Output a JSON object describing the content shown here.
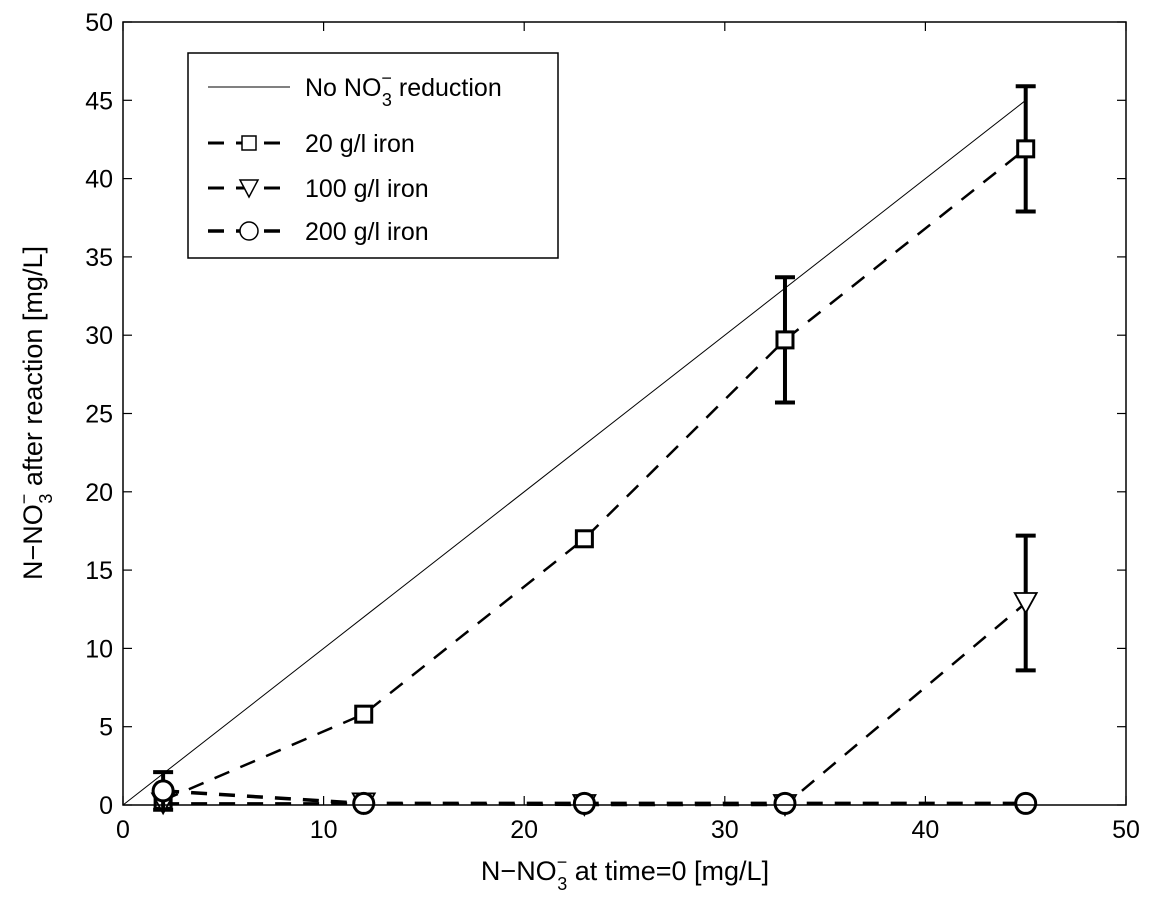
{
  "chart_data": {
    "type": "line",
    "xlabel": {
      "main": "N−NO",
      "sub": "3",
      "sup": "−",
      "rest": " at time=0 [mg/L]"
    },
    "ylabel": {
      "main": "N−NO",
      "sub": "3",
      "sup": "−",
      "rest": " after reaction [mg/L]"
    },
    "xlim": [
      0,
      50
    ],
    "ylim": [
      0,
      50
    ],
    "xticks": [
      "0",
      "10",
      "20",
      "30",
      "40",
      "50"
    ],
    "yticks": [
      "0",
      "5",
      "10",
      "15",
      "20",
      "25",
      "30",
      "35",
      "40",
      "45",
      "50"
    ],
    "grid": false,
    "legend_position": "top-left",
    "reference_line": {
      "label_main": "No NO",
      "label_sub": "3",
      "label_sup": "−",
      "label_rest": " reduction",
      "x": [
        0,
        45
      ],
      "y": [
        0,
        45
      ]
    },
    "series": [
      {
        "name": "20 g/l iron",
        "marker": "square",
        "x": [
          2,
          12,
          23,
          33,
          45
        ],
        "y": [
          0.3,
          5.8,
          17.0,
          29.7,
          41.9
        ],
        "err": [
          0,
          0,
          0,
          4.0,
          4.0
        ]
      },
      {
        "name": "100 g/l iron",
        "marker": "triangle-down",
        "x": [
          2,
          12,
          23,
          33,
          45
        ],
        "y": [
          0.1,
          0.1,
          0.0,
          0.0,
          12.9
        ],
        "err": [
          0,
          0,
          0,
          0,
          4.3
        ]
      },
      {
        "name": "200 g/l iron",
        "marker": "circle",
        "x": [
          2,
          12,
          23,
          33,
          45
        ],
        "y": [
          0.9,
          0.1,
          0.1,
          0.1,
          0.1
        ],
        "err": [
          1.2,
          0,
          0,
          0,
          0
        ]
      }
    ]
  }
}
